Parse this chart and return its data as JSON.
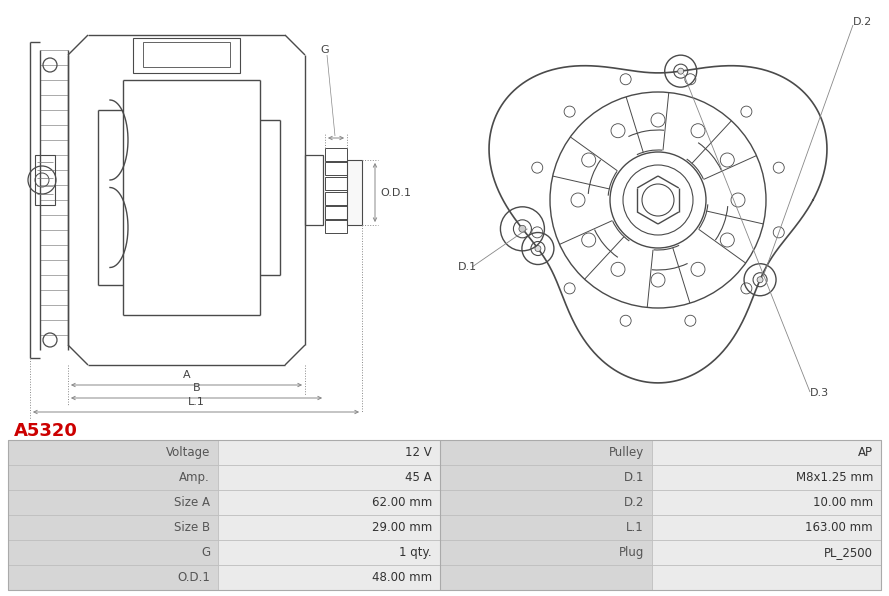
{
  "title": "A5320",
  "title_color": "#cc0000",
  "bg_color": "#ffffff",
  "table_border": "#cccccc",
  "table_data": [
    [
      "Voltage",
      "12 V",
      "Pulley",
      "AP"
    ],
    [
      "Amp.",
      "45 A",
      "D.1",
      "M8x1.25 mm"
    ],
    [
      "Size A",
      "62.00 mm",
      "D.2",
      "10.00 mm"
    ],
    [
      "Size B",
      "29.00 mm",
      "L.1",
      "163.00 mm"
    ],
    [
      "G",
      "1 qty.",
      "Plug",
      "PL_2500"
    ],
    [
      "O.D.1",
      "48.00 mm",
      "",
      ""
    ]
  ],
  "lc": "#4a4a4a",
  "dlc": "#888888",
  "lw": 1.0,
  "dlw": 0.7
}
